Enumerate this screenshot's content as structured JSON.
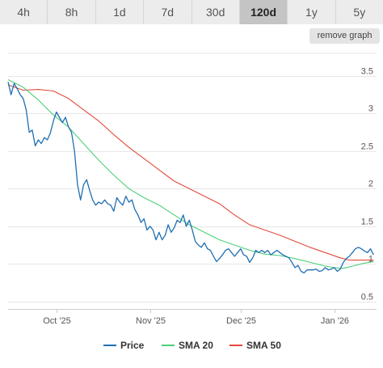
{
  "tabs": [
    "4h",
    "8h",
    "1d",
    "7d",
    "30d",
    "120d",
    "1y",
    "5y"
  ],
  "active_tab": "120d",
  "remove_graph_label": "remove graph",
  "colors": {
    "price": "#1f6fb2",
    "sma20": "#4ccf7a",
    "sma50": "#e24a3b",
    "grid": "#e6e6e6"
  },
  "chart_data": {
    "type": "line",
    "title": "",
    "xlabel": "",
    "ylabel": "",
    "ylim": [
      0.4,
      3.8
    ],
    "y_ticks": [
      0.5,
      1,
      1.5,
      2,
      2.5,
      3,
      3.5
    ],
    "y_tick_labels": [
      "0.5",
      "1",
      "1.5",
      "2",
      "2.5",
      "3",
      "3.5"
    ],
    "x_range": [
      0,
      122
    ],
    "x_ticks": [
      {
        "x": 16,
        "label": "Oct '25"
      },
      {
        "x": 47,
        "label": "Nov '25"
      },
      {
        "x": 77,
        "label": "Dec '25"
      },
      {
        "x": 108,
        "label": "Jan '26"
      }
    ],
    "legend_position": "bottom",
    "series": [
      {
        "name": "Price",
        "key": "price",
        "points": [
          [
            0,
            3.42
          ],
          [
            1,
            3.25
          ],
          [
            2,
            3.4
          ],
          [
            3,
            3.33
          ],
          [
            4,
            3.25
          ],
          [
            5,
            3.2
          ],
          [
            6,
            3.05
          ],
          [
            7,
            2.75
          ],
          [
            8,
            2.78
          ],
          [
            9,
            2.57
          ],
          [
            10,
            2.65
          ],
          [
            11,
            2.6
          ],
          [
            12,
            2.68
          ],
          [
            13,
            2.65
          ],
          [
            14,
            2.74
          ],
          [
            15,
            2.9
          ],
          [
            16,
            3.02
          ],
          [
            17,
            2.95
          ],
          [
            18,
            2.88
          ],
          [
            19,
            2.95
          ],
          [
            20,
            2.82
          ],
          [
            21,
            2.75
          ],
          [
            22,
            2.5
          ],
          [
            23,
            2.05
          ],
          [
            24,
            1.85
          ],
          [
            25,
            2.05
          ],
          [
            26,
            2.12
          ],
          [
            27,
            1.98
          ],
          [
            28,
            1.85
          ],
          [
            29,
            1.78
          ],
          [
            30,
            1.82
          ],
          [
            31,
            1.8
          ],
          [
            32,
            1.85
          ],
          [
            33,
            1.8
          ],
          [
            34,
            1.78
          ],
          [
            35,
            1.7
          ],
          [
            36,
            1.88
          ],
          [
            37,
            1.82
          ],
          [
            38,
            1.78
          ],
          [
            39,
            1.9
          ],
          [
            40,
            1.82
          ],
          [
            41,
            1.85
          ],
          [
            42,
            1.72
          ],
          [
            43,
            1.65
          ],
          [
            44,
            1.55
          ],
          [
            45,
            1.6
          ],
          [
            46,
            1.45
          ],
          [
            47,
            1.5
          ],
          [
            48,
            1.45
          ],
          [
            49,
            1.32
          ],
          [
            50,
            1.42
          ],
          [
            51,
            1.32
          ],
          [
            52,
            1.38
          ],
          [
            53,
            1.52
          ],
          [
            54,
            1.42
          ],
          [
            55,
            1.48
          ],
          [
            56,
            1.58
          ],
          [
            57,
            1.55
          ],
          [
            58,
            1.65
          ],
          [
            59,
            1.5
          ],
          [
            60,
            1.58
          ],
          [
            61,
            1.45
          ],
          [
            62,
            1.3
          ],
          [
            63,
            1.25
          ],
          [
            64,
            1.22
          ],
          [
            65,
            1.28
          ],
          [
            66,
            1.2
          ],
          [
            67,
            1.18
          ],
          [
            68,
            1.1
          ],
          [
            69,
            1.03
          ],
          [
            70,
            1.07
          ],
          [
            71,
            1.12
          ],
          [
            72,
            1.18
          ],
          [
            73,
            1.2
          ],
          [
            74,
            1.15
          ],
          [
            75,
            1.1
          ],
          [
            76,
            1.15
          ],
          [
            77,
            1.2
          ],
          [
            78,
            1.12
          ],
          [
            79,
            1.1
          ],
          [
            80,
            1.02
          ],
          [
            81,
            1.08
          ],
          [
            82,
            1.18
          ],
          [
            83,
            1.15
          ],
          [
            84,
            1.18
          ],
          [
            85,
            1.15
          ],
          [
            86,
            1.18
          ],
          [
            87,
            1.12
          ],
          [
            88,
            1.15
          ],
          [
            89,
            1.18
          ],
          [
            90,
            1.15
          ],
          [
            91,
            1.12
          ],
          [
            92,
            1.1
          ],
          [
            93,
            1.08
          ],
          [
            94,
            1.02
          ],
          [
            95,
            0.95
          ],
          [
            96,
            0.98
          ],
          [
            97,
            0.9
          ],
          [
            98,
            0.88
          ],
          [
            99,
            0.92
          ],
          [
            100,
            0.92
          ],
          [
            101,
            0.92
          ],
          [
            102,
            0.93
          ],
          [
            103,
            0.9
          ],
          [
            104,
            0.91
          ],
          [
            105,
            0.95
          ],
          [
            106,
            0.92
          ],
          [
            107,
            0.93
          ],
          [
            108,
            0.95
          ],
          [
            109,
            0.9
          ],
          [
            110,
            0.93
          ],
          [
            111,
            1.02
          ],
          [
            112,
            1.07
          ],
          [
            113,
            1.1
          ],
          [
            114,
            1.15
          ],
          [
            115,
            1.2
          ],
          [
            116,
            1.22
          ],
          [
            117,
            1.2
          ],
          [
            118,
            1.17
          ],
          [
            119,
            1.15
          ],
          [
            120,
            1.2
          ],
          [
            121,
            1.12
          ]
        ]
      },
      {
        "name": "SMA 20",
        "key": "sma20",
        "points": [
          [
            0,
            3.45
          ],
          [
            5,
            3.35
          ],
          [
            10,
            3.18
          ],
          [
            15,
            2.98
          ],
          [
            20,
            2.82
          ],
          [
            25,
            2.6
          ],
          [
            30,
            2.38
          ],
          [
            35,
            2.18
          ],
          [
            40,
            2.0
          ],
          [
            45,
            1.88
          ],
          [
            50,
            1.78
          ],
          [
            55,
            1.65
          ],
          [
            60,
            1.52
          ],
          [
            65,
            1.42
          ],
          [
            70,
            1.32
          ],
          [
            75,
            1.25
          ],
          [
            80,
            1.18
          ],
          [
            85,
            1.13
          ],
          [
            90,
            1.11
          ],
          [
            95,
            1.07
          ],
          [
            100,
            1.02
          ],
          [
            105,
            0.97
          ],
          [
            108,
            0.95
          ],
          [
            111,
            0.94
          ],
          [
            115,
            0.98
          ],
          [
            118,
            1.01
          ],
          [
            121,
            1.03
          ]
        ]
      },
      {
        "name": "SMA 50",
        "key": "sma50",
        "points": [
          [
            0,
            3.38
          ],
          [
            5,
            3.31
          ],
          [
            10,
            3.32
          ],
          [
            15,
            3.3
          ],
          [
            20,
            3.2
          ],
          [
            25,
            3.05
          ],
          [
            30,
            2.9
          ],
          [
            35,
            2.72
          ],
          [
            40,
            2.55
          ],
          [
            45,
            2.4
          ],
          [
            50,
            2.25
          ],
          [
            55,
            2.1
          ],
          [
            60,
            2.0
          ],
          [
            65,
            1.9
          ],
          [
            70,
            1.8
          ],
          [
            75,
            1.65
          ],
          [
            80,
            1.52
          ],
          [
            85,
            1.45
          ],
          [
            90,
            1.38
          ],
          [
            95,
            1.3
          ],
          [
            100,
            1.22
          ],
          [
            105,
            1.15
          ],
          [
            110,
            1.08
          ],
          [
            113,
            1.05
          ],
          [
            117,
            1.05
          ],
          [
            121,
            1.05
          ]
        ]
      }
    ]
  }
}
